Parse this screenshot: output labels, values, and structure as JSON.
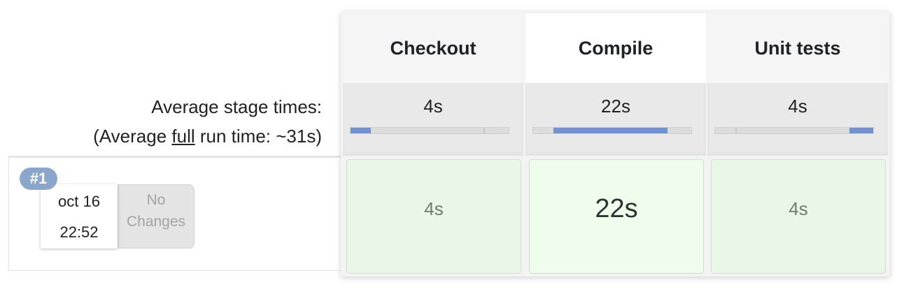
{
  "summary": {
    "average_label": "Average stage times:",
    "full_run_prefix": "(Average ",
    "full_run_link": "full",
    "full_run_suffix": " run time: ~31s)"
  },
  "build": {
    "number": "#1",
    "date": "oct 16",
    "time": "22:52",
    "changes_line1": "No",
    "changes_line2": "Changes"
  },
  "stages": [
    {
      "name": "Checkout",
      "average": "4s",
      "run_duration": "4s",
      "avg_bar_fill": 0.13,
      "avg_bar_offset": 0.0
    },
    {
      "name": "Compile",
      "average": "22s",
      "run_duration": "22s",
      "avg_bar_fill": 0.72,
      "avg_bar_offset": 0.13
    },
    {
      "name": "Unit tests",
      "average": "4s",
      "run_duration": "4s",
      "avg_bar_fill": 0.15,
      "avg_bar_offset": 0.85
    }
  ],
  "colors": {
    "success_cell": "#e9f7e7",
    "progress_fill": "#6f92d6",
    "build_badge": "#8aa6cc"
  }
}
